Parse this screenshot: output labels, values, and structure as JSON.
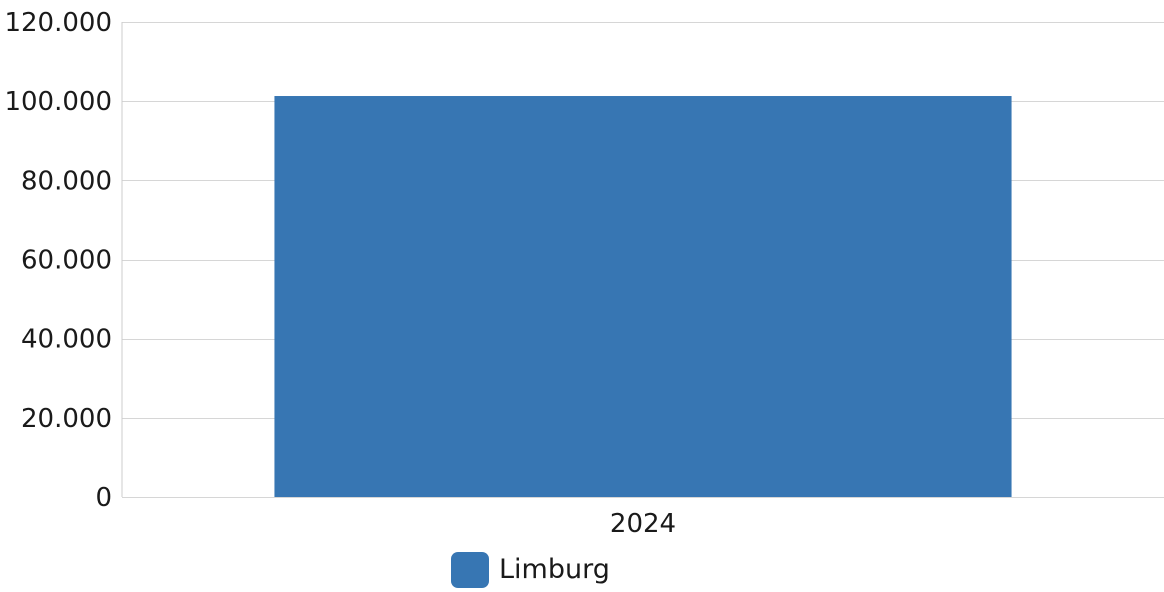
{
  "chart_data": {
    "type": "bar",
    "categories": [
      "2024"
    ],
    "series": [
      {
        "name": "Limburg",
        "values": [
          101300
        ],
        "color": "#3776b3"
      }
    ],
    "y_ticks": [
      "0",
      "20.000",
      "40.000",
      "60.000",
      "80.000",
      "100.000",
      "120.000"
    ],
    "ylim": [
      0,
      120000
    ],
    "grid": true,
    "legend": "bottom-center",
    "title": "",
    "xlabel": "",
    "ylabel": ""
  }
}
